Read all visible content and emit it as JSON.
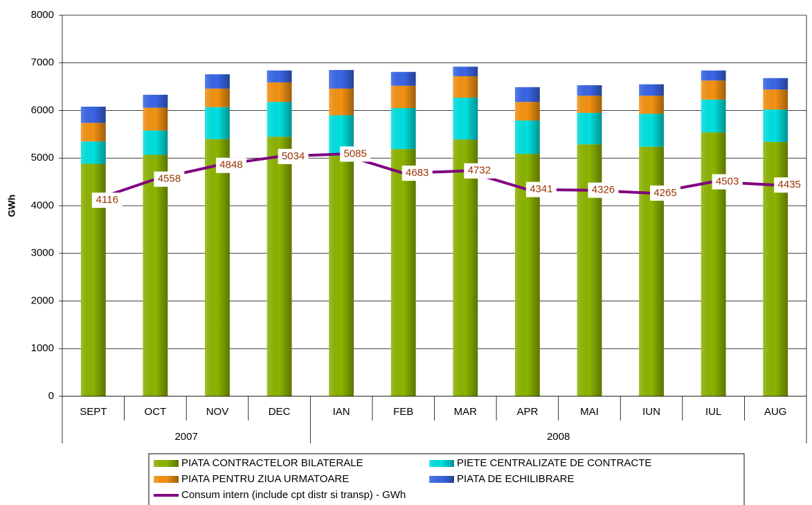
{
  "chart_data": {
    "type": "bar",
    "stacked": true,
    "y_label": "GWh",
    "categories": [
      "SEPT",
      "OCT",
      "NOV",
      "DEC",
      "IAN",
      "FEB",
      "MAR",
      "APR",
      "MAI",
      "IUN",
      "IUL",
      "AUG"
    ],
    "category_groups": [
      "2007",
      "2007",
      "2007",
      "2007",
      "2008",
      "2008",
      "2008",
      "2008",
      "2008",
      "2008",
      "2008",
      "2008"
    ],
    "ylim": [
      0,
      8000
    ],
    "yticks": [
      0,
      1000,
      2000,
      3000,
      4000,
      5000,
      6000,
      7000,
      8000
    ],
    "grid": true,
    "series": [
      {
        "name": "PIATA CONTRACTELOR BILATERALE",
        "color": "#8cb400",
        "values": [
          4880,
          5070,
          5400,
          5450,
          5050,
          5190,
          5390,
          5090,
          5290,
          5240,
          5540,
          5340
        ]
      },
      {
        "name": "PIETE CENTRALIZATE DE CONTRACTE",
        "color": "#00e0e0",
        "values": [
          470,
          510,
          670,
          730,
          850,
          860,
          880,
          700,
          660,
          690,
          690,
          680
        ]
      },
      {
        "name": "PIATA PENTRU ZIUA URMATOARE",
        "color": "#f39212",
        "values": [
          390,
          480,
          390,
          410,
          560,
          470,
          450,
          390,
          360,
          380,
          400,
          420
        ]
      },
      {
        "name": "PIATA DE ECHILIBRARE",
        "color": "#3a66e6",
        "values": [
          340,
          270,
          300,
          250,
          390,
          290,
          200,
          310,
          220,
          240,
          210,
          240
        ]
      },
      {
        "name": "Consum intern (include cpt distr si transp) - GWh",
        "type": "line",
        "color": "#800080",
        "label_color": "#993300",
        "values": [
          4116,
          4558,
          4848,
          5034,
          5085,
          4683,
          4732,
          4341,
          4326,
          4265,
          4503,
          4435
        ]
      }
    ]
  }
}
